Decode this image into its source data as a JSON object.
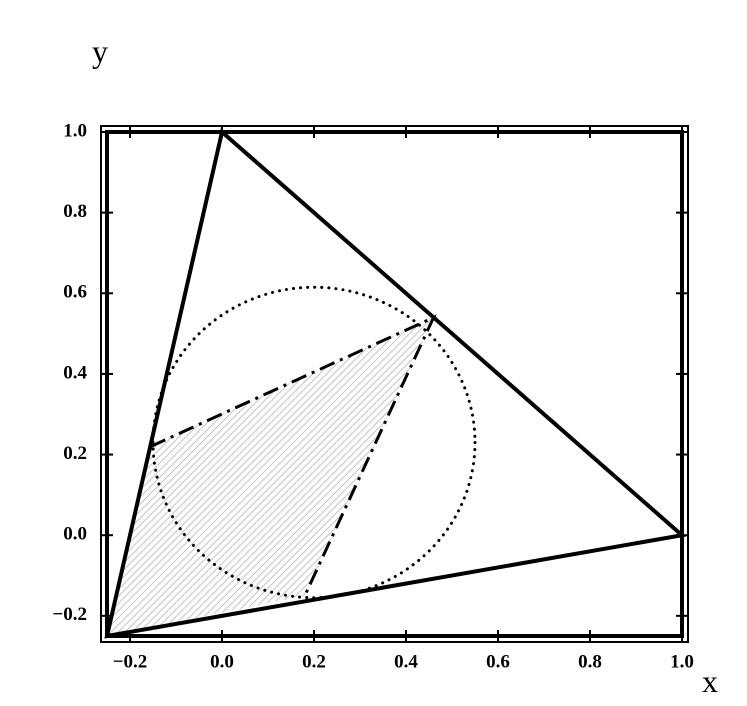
{
  "chart_data": {
    "type": "geometry",
    "x_label": "x",
    "y_label": "y",
    "xlim": [
      -0.25,
      1.0
    ],
    "ylim": [
      -0.25,
      1.0
    ],
    "xticks": [
      {
        "value": -0.2,
        "label": "−0.2"
      },
      {
        "value": 0,
        "label": "0.0"
      },
      {
        "value": 0.2,
        "label": "0.2"
      },
      {
        "value": 0.4,
        "label": "0.4"
      },
      {
        "value": 0.6,
        "label": "0.6"
      },
      {
        "value": 0.8,
        "label": "0.8"
      },
      {
        "value": 1,
        "label": "1.0"
      }
    ],
    "yticks": [
      {
        "value": -0.2,
        "label": "−0.2"
      },
      {
        "value": 0,
        "label": "0.0"
      },
      {
        "value": 0.2,
        "label": "0.2"
      },
      {
        "value": 0.4,
        "label": "0.4"
      },
      {
        "value": 0.6,
        "label": "0.6"
      },
      {
        "value": 0.8,
        "label": "0.8"
      },
      {
        "value": 1,
        "label": "1.0"
      }
    ],
    "series": [
      {
        "shape": "polygon",
        "style": "solid",
        "fill": "none",
        "color": "#000000",
        "x": [
          0,
          1,
          -0.25
        ],
        "y": [
          1,
          0,
          -0.25
        ]
      },
      {
        "shape": "ellipse",
        "style": "dotted",
        "color": "#000000",
        "center_x": 0.2,
        "center_y": 0.23,
        "radius_x": 0.35,
        "radius_y": 0.385
      },
      {
        "shape": "polygon",
        "style": "none",
        "fill": "hatch",
        "color": "#b0b0b0",
        "x": [
          -0.25,
          -0.155,
          0.46,
          0.18
        ],
        "y": [
          -0.25,
          0.22,
          0.54,
          -0.15
        ]
      },
      {
        "shape": "polyline",
        "style": "dashdot",
        "color": "#000000",
        "x": [
          -0.155,
          0.46,
          0.18
        ],
        "y": [
          0.22,
          0.54,
          -0.15
        ]
      }
    ]
  }
}
